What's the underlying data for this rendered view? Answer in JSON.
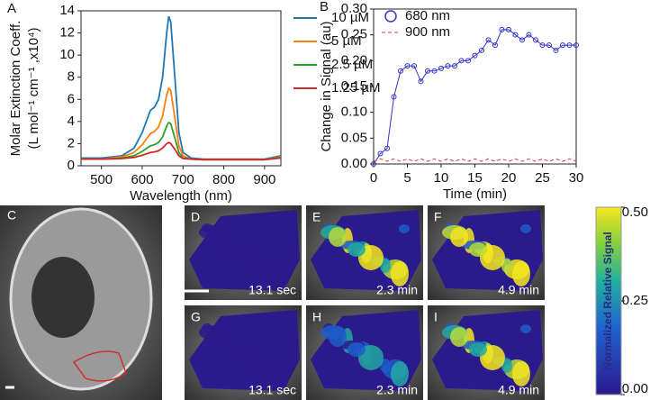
{
  "chart_data": [
    {
      "type": "line",
      "panel": "A",
      "ylabel": "Molar Extinction Coeff.",
      "ylabel2": "(L mol⁻¹ cm⁻¹ ,x10⁴)",
      "xlabel": "Wavelength (nm)",
      "x": [
        450,
        500,
        550,
        580,
        600,
        620,
        630,
        640,
        650,
        660,
        665,
        670,
        680,
        690,
        700,
        720,
        750,
        800,
        850,
        900,
        940
      ],
      "xlim": [
        450,
        940
      ],
      "xticks": [
        500,
        600,
        700,
        800,
        900
      ],
      "ylim": [
        0,
        14
      ],
      "yticks": [
        0,
        2,
        4,
        6,
        8,
        10,
        12,
        14
      ],
      "series": [
        {
          "name": "10 µM",
          "color": "#1f77b4",
          "values": [
            0.7,
            0.7,
            0.9,
            1.6,
            3.0,
            5.0,
            5.3,
            6.0,
            8.0,
            12.0,
            13.5,
            13.0,
            8.0,
            3.0,
            1.2,
            0.7,
            0.6,
            0.6,
            0.6,
            0.6,
            0.9
          ]
        },
        {
          "name": "5 µM",
          "color": "#ff7f0e",
          "values": [
            0.6,
            0.6,
            0.8,
            1.2,
            1.9,
            2.9,
            3.1,
            3.5,
            4.5,
            6.4,
            7.0,
            6.8,
            4.3,
            1.8,
            0.9,
            0.6,
            0.55,
            0.55,
            0.55,
            0.55,
            0.8
          ]
        },
        {
          "name": "2.5 µM",
          "color": "#2ca02c",
          "values": [
            0.6,
            0.6,
            0.7,
            0.9,
            1.3,
            1.8,
            1.9,
            2.1,
            2.6,
            3.6,
            3.9,
            3.8,
            2.5,
            1.2,
            0.7,
            0.6,
            0.55,
            0.55,
            0.55,
            0.55,
            0.75
          ]
        },
        {
          "name": "1.25 µM",
          "color": "#d62728",
          "values": [
            0.6,
            0.6,
            0.65,
            0.75,
            0.95,
            1.2,
            1.25,
            1.35,
            1.6,
            2.0,
            2.1,
            2.0,
            1.5,
            0.9,
            0.65,
            0.6,
            0.55,
            0.55,
            0.55,
            0.55,
            0.7
          ]
        }
      ]
    },
    {
      "type": "scatter-line",
      "panel": "B",
      "ylabel": "Change  in Signal (au)",
      "xlabel": "Time (min)",
      "x": [
        0,
        1,
        2,
        3,
        4,
        5,
        6,
        7,
        8,
        9,
        10,
        11,
        12,
        13,
        14,
        15,
        16,
        17,
        18,
        19,
        20,
        21,
        22,
        23,
        24,
        25,
        26,
        27,
        28,
        29,
        30
      ],
      "xlim": [
        0,
        30
      ],
      "xticks": [
        0,
        5,
        10,
        15,
        20,
        25,
        30
      ],
      "ylim": [
        0,
        0.3
      ],
      "yticks": [
        {
          "value": 0,
          "label": "0.00"
        },
        0.05,
        {
          "value": 0.1,
          "label": "0.10"
        },
        0.15,
        {
          "value": 0.2,
          "label": "0.20"
        },
        0.25,
        {
          "value": 0.3,
          "label": "0.30"
        }
      ],
      "series": [
        {
          "name": "680 nm",
          "color": "#3333cc",
          "values": [
            0.0,
            0.02,
            0.03,
            0.13,
            0.18,
            0.19,
            0.19,
            0.16,
            0.18,
            0.18,
            0.185,
            0.19,
            0.19,
            0.2,
            0.2,
            0.21,
            0.22,
            0.24,
            0.23,
            0.26,
            0.26,
            0.25,
            0.24,
            0.25,
            0.24,
            0.23,
            0.23,
            0.22,
            0.23,
            0.23,
            0.23
          ]
        },
        {
          "name": "900 nm",
          "color": "#dd3333",
          "values": [
            0.005,
            0.01,
            0.005,
            0.01,
            0.005,
            0.01,
            0.005,
            0.01,
            0.005,
            0.01,
            0.005,
            0.01,
            0.005,
            0.01,
            0.005,
            0.01,
            0.005,
            0.01,
            0.005,
            0.01,
            0.005,
            0.01,
            0.005,
            0.01,
            0.005,
            0.01,
            0.005,
            0.01,
            0.005,
            0.01,
            0.005
          ]
        }
      ]
    }
  ],
  "panels": [
    {
      "label": "C"
    },
    {
      "label": "D",
      "time": "13.1 sec"
    },
    {
      "label": "E",
      "time": "2.3 min"
    },
    {
      "label": "F",
      "time": "4.9 min"
    },
    {
      "label": "G",
      "time": "13.1 sec"
    },
    {
      "label": "H",
      "time": "2.3 min"
    },
    {
      "label": "I",
      "time": "4.9 min"
    }
  ],
  "colorbar": {
    "label": "Normalized Relative Signal",
    "range": [
      0,
      0.5
    ],
    "ticks": [
      {
        "value": 0.5,
        "label": "0.50"
      },
      {
        "value": 0.25,
        "label": "0.25"
      },
      {
        "value": 0,
        "label": "0.00"
      }
    ]
  }
}
